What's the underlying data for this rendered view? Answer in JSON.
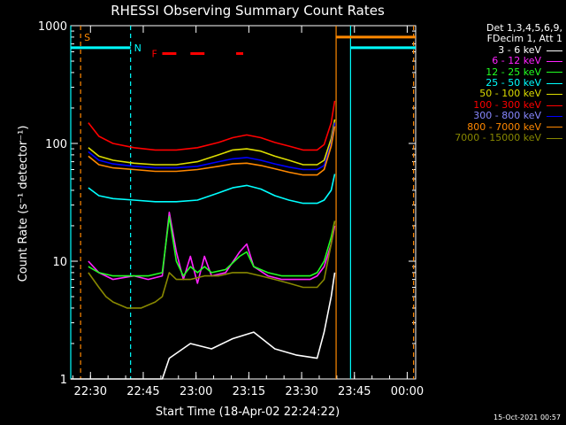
{
  "chart_data": {
    "type": "line",
    "title": "RHESSI Observing Summary Count Rates",
    "xlabel": "Start Time (18-Apr-02 22:24:22)",
    "ylabel": "Count Rate (s⁻¹ detector⁻¹)",
    "x_unit": "minutes after 22:24:22",
    "xlim": [
      0,
      98
    ],
    "ylim": [
      1,
      1000
    ],
    "y_scale": "log",
    "x_ticks": [
      {
        "t": 5.6,
        "label": "22:30"
      },
      {
        "t": 20.6,
        "label": "22:45"
      },
      {
        "t": 35.6,
        "label": "23:00"
      },
      {
        "t": 50.6,
        "label": "23:15"
      },
      {
        "t": 65.6,
        "label": "23:30"
      },
      {
        "t": 80.6,
        "label": "23:45"
      },
      {
        "t": 95.6,
        "label": "00:00"
      }
    ],
    "y_ticks": [
      {
        "v": 1,
        "label": "1"
      },
      {
        "v": 10,
        "label": "10"
      },
      {
        "v": 100,
        "label": "100"
      },
      {
        "v": 1000,
        "label": "1000"
      }
    ],
    "legend_header": [
      "Det 1,3,4,5,6,9,",
      "FDecim 1, Att 1"
    ],
    "legend_position": "right",
    "series": [
      {
        "name": "3 - 6 keV",
        "color": "#ffffff",
        "x": [
          0,
          26,
          28,
          34,
          40,
          46,
          52,
          58,
          64,
          70,
          72,
          74,
          75
        ],
        "y": [
          1,
          1,
          1.5,
          2,
          1.8,
          2.2,
          2.5,
          1.8,
          1.6,
          1.5,
          2.5,
          5,
          8
        ]
      },
      {
        "name": "6 - 12 keV",
        "color": "#ff22ff",
        "x": [
          5,
          8,
          12,
          18,
          22,
          26,
          28,
          30,
          32,
          34,
          36,
          38,
          40,
          44,
          48,
          50,
          52,
          56,
          60,
          64,
          68,
          70,
          72,
          74,
          75
        ],
        "y": [
          10,
          8,
          7,
          7.5,
          7,
          7.5,
          26,
          12,
          7,
          11,
          6.5,
          11,
          7.5,
          8,
          12,
          14,
          9,
          7.5,
          7,
          7,
          7,
          7.5,
          9,
          14,
          20
        ]
      },
      {
        "name": "12 - 25 keV",
        "color": "#22ff22",
        "x": [
          5,
          8,
          12,
          18,
          22,
          26,
          28,
          30,
          32,
          34,
          36,
          38,
          40,
          44,
          48,
          50,
          52,
          56,
          60,
          64,
          68,
          70,
          72,
          74,
          75
        ],
        "y": [
          9,
          8,
          7.5,
          7.5,
          7.5,
          8,
          24,
          10,
          7.5,
          9,
          8,
          9,
          8,
          8.5,
          11,
          12,
          9,
          8,
          7.5,
          7.5,
          7.5,
          8,
          10,
          16,
          22
        ]
      },
      {
        "name": "25 - 50 keV",
        "color": "#00ffff",
        "x": [
          5,
          8,
          12,
          18,
          24,
          30,
          36,
          42,
          46,
          50,
          54,
          58,
          62,
          66,
          70,
          72,
          74,
          75
        ],
        "y": [
          42,
          36,
          34,
          33,
          32,
          32,
          33,
          38,
          42,
          44,
          41,
          36,
          33,
          31,
          31,
          33,
          40,
          55
        ]
      },
      {
        "name": "50 - 100 keV",
        "color": "#dddd00",
        "x": [
          5,
          8,
          12,
          18,
          24,
          30,
          36,
          42,
          46,
          50,
          54,
          58,
          62,
          66,
          70,
          72,
          74,
          75
        ],
        "y": [
          92,
          78,
          72,
          68,
          66,
          66,
          70,
          80,
          88,
          90,
          86,
          78,
          72,
          66,
          66,
          72,
          110,
          160
        ]
      },
      {
        "name": "100 - 300 keV",
        "color": "#ff0000",
        "x": [
          5,
          8,
          12,
          18,
          24,
          30,
          36,
          42,
          46,
          50,
          54,
          58,
          62,
          66,
          70,
          72,
          74,
          75
        ],
        "y": [
          150,
          115,
          100,
          92,
          88,
          88,
          92,
          102,
          112,
          118,
          112,
          102,
          95,
          88,
          88,
          98,
          150,
          230
        ]
      },
      {
        "name": "300 - 800 keV",
        "color": "#0000ff",
        "x": [
          5,
          8,
          12,
          18,
          24,
          30,
          36,
          42,
          46,
          50,
          54,
          58,
          62,
          66,
          70,
          72,
          74,
          75
        ],
        "y": [
          85,
          72,
          67,
          64,
          62,
          62,
          64,
          70,
          74,
          76,
          72,
          67,
          63,
          60,
          60,
          65,
          100,
          150
        ]
      },
      {
        "name": "800 - 7000 keV",
        "color": "#ff8800",
        "x": [
          5,
          8,
          12,
          18,
          24,
          30,
          36,
          42,
          46,
          50,
          54,
          58,
          62,
          66,
          70,
          72,
          74,
          75
        ],
        "y": [
          78,
          66,
          62,
          60,
          58,
          58,
          60,
          64,
          67,
          68,
          65,
          61,
          57,
          54,
          54,
          60,
          95,
          140
        ]
      },
      {
        "name": "7000 - 15000 keV",
        "color": "#888800",
        "x": [
          5,
          8,
          10,
          12,
          16,
          20,
          24,
          26,
          28,
          30,
          34,
          38,
          42,
          46,
          50,
          54,
          58,
          62,
          66,
          70,
          72,
          74,
          75
        ],
        "y": [
          8,
          6,
          5,
          4.5,
          4,
          4,
          4.5,
          5,
          8,
          7,
          7,
          7.5,
          7.5,
          8,
          8,
          7.5,
          7,
          6.5,
          6,
          6,
          7,
          14,
          22
        ]
      }
    ],
    "annotations": [
      {
        "label": "S",
        "color": "#ff8800",
        "x": 2.8,
        "line": "dashed",
        "level": 800
      },
      {
        "label": "N",
        "color": "#00ffff",
        "x": 17,
        "line": "dashed",
        "level": 650
      },
      {
        "label": "F",
        "color": "#ff0000",
        "level": 580
      }
    ],
    "flare_segments": [
      [
        26,
        30
      ],
      [
        34,
        38
      ],
      [
        47,
        49
      ]
    ],
    "saa_intervals": [
      {
        "color": "#00ffff",
        "from": -1,
        "to": 17,
        "level": 650
      },
      {
        "color": "#00ffff",
        "from": 79.5,
        "to": 98,
        "level": 650
      }
    ],
    "night_intervals": [
      {
        "color": "#ff8800",
        "from": -1,
        "to": 0,
        "level": 800
      },
      {
        "color": "#ff8800",
        "from": 75.4,
        "to": 98,
        "level": 800
      }
    ],
    "vertical_markers": [
      {
        "x": -1,
        "color": "#00ffff",
        "style": "solid"
      },
      {
        "x": 2.8,
        "color": "#ff8800",
        "style": "dashed"
      },
      {
        "x": 17,
        "color": "#00ffff",
        "style": "dashed"
      },
      {
        "x": 75.4,
        "color": "#ff8800",
        "style": "solid"
      },
      {
        "x": 79.5,
        "color": "#00ffff",
        "style": "solid"
      },
      {
        "x": 97.4,
        "color": "#ff8800",
        "style": "dashed"
      }
    ]
  },
  "footer": {
    "timestamp": "15-Oct-2021 00:57"
  }
}
